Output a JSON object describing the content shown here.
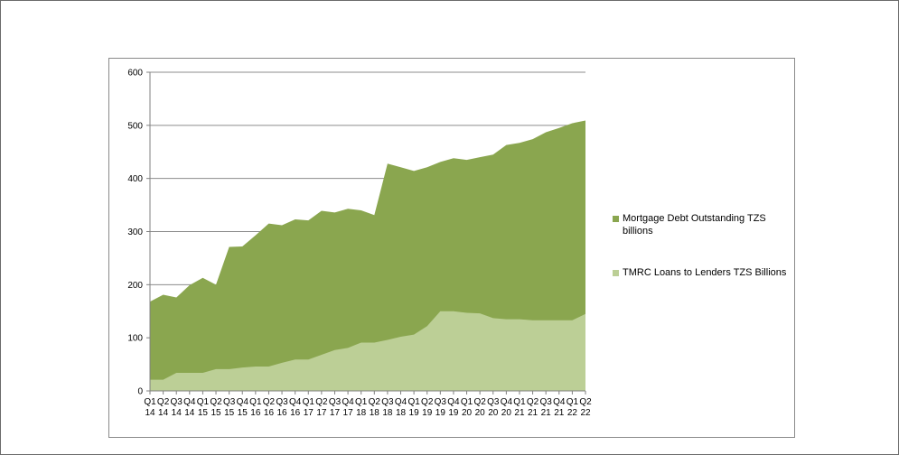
{
  "chart_data": {
    "type": "area",
    "stacked": false,
    "categories": [
      [
        "Q1",
        "14"
      ],
      [
        "Q2",
        "14"
      ],
      [
        "Q3",
        "14"
      ],
      [
        "Q4",
        "14"
      ],
      [
        "Q1",
        "15"
      ],
      [
        "Q2",
        "15"
      ],
      [
        "Q3",
        "15"
      ],
      [
        "Q4",
        "15"
      ],
      [
        "Q1",
        "16"
      ],
      [
        "Q2",
        "16"
      ],
      [
        "Q3",
        "16"
      ],
      [
        "Q4",
        "16"
      ],
      [
        "Q1",
        "17"
      ],
      [
        "Q2",
        "17"
      ],
      [
        "Q3",
        "17"
      ],
      [
        "Q4",
        "17"
      ],
      [
        "Q1",
        "18"
      ],
      [
        "Q2",
        "18"
      ],
      [
        "Q3",
        "18"
      ],
      [
        "Q4",
        "18"
      ],
      [
        "Q1",
        "19"
      ],
      [
        "Q2",
        "19"
      ],
      [
        "Q3",
        "19"
      ],
      [
        "Q4",
        "19"
      ],
      [
        "Q1",
        "20"
      ],
      [
        "Q2",
        "20"
      ],
      [
        "Q3",
        "20"
      ],
      [
        "Q4",
        "20"
      ],
      [
        "Q1",
        "21"
      ],
      [
        "Q2",
        "21"
      ],
      [
        "Q3",
        "21"
      ],
      [
        "Q4",
        "21"
      ],
      [
        "Q1",
        "22"
      ],
      [
        "Q2",
        "22"
      ]
    ],
    "series": [
      {
        "name": "Mortgage Debt Outstanding TZS billions",
        "name_lines": [
          "Mortgage Debt Outstanding TZS",
          "billions"
        ],
        "color": "#8aa64f",
        "values": [
          168,
          181,
          176,
          199,
          213,
          200,
          271,
          272,
          293,
          315,
          312,
          323,
          321,
          339,
          336,
          343,
          340,
          331,
          428,
          421,
          414,
          421,
          431,
          438,
          435,
          440,
          445,
          463,
          467,
          474,
          487,
          495,
          504,
          509
        ]
      },
      {
        "name": "TMRC Loans to Lenders TZS Billions",
        "color": "#bccf96",
        "values": [
          21,
          21,
          34,
          34,
          34,
          41,
          41,
          44,
          46,
          46,
          53,
          59,
          59,
          68,
          77,
          81,
          91,
          91,
          96,
          102,
          106,
          122,
          150,
          150,
          147,
          146,
          137,
          135,
          135,
          133,
          133,
          133,
          133,
          145
        ]
      }
    ],
    "ylim": [
      0,
      600
    ],
    "yticks": [
      0,
      100,
      200,
      300,
      400,
      500,
      600
    ],
    "grid": true,
    "legend": "right"
  }
}
